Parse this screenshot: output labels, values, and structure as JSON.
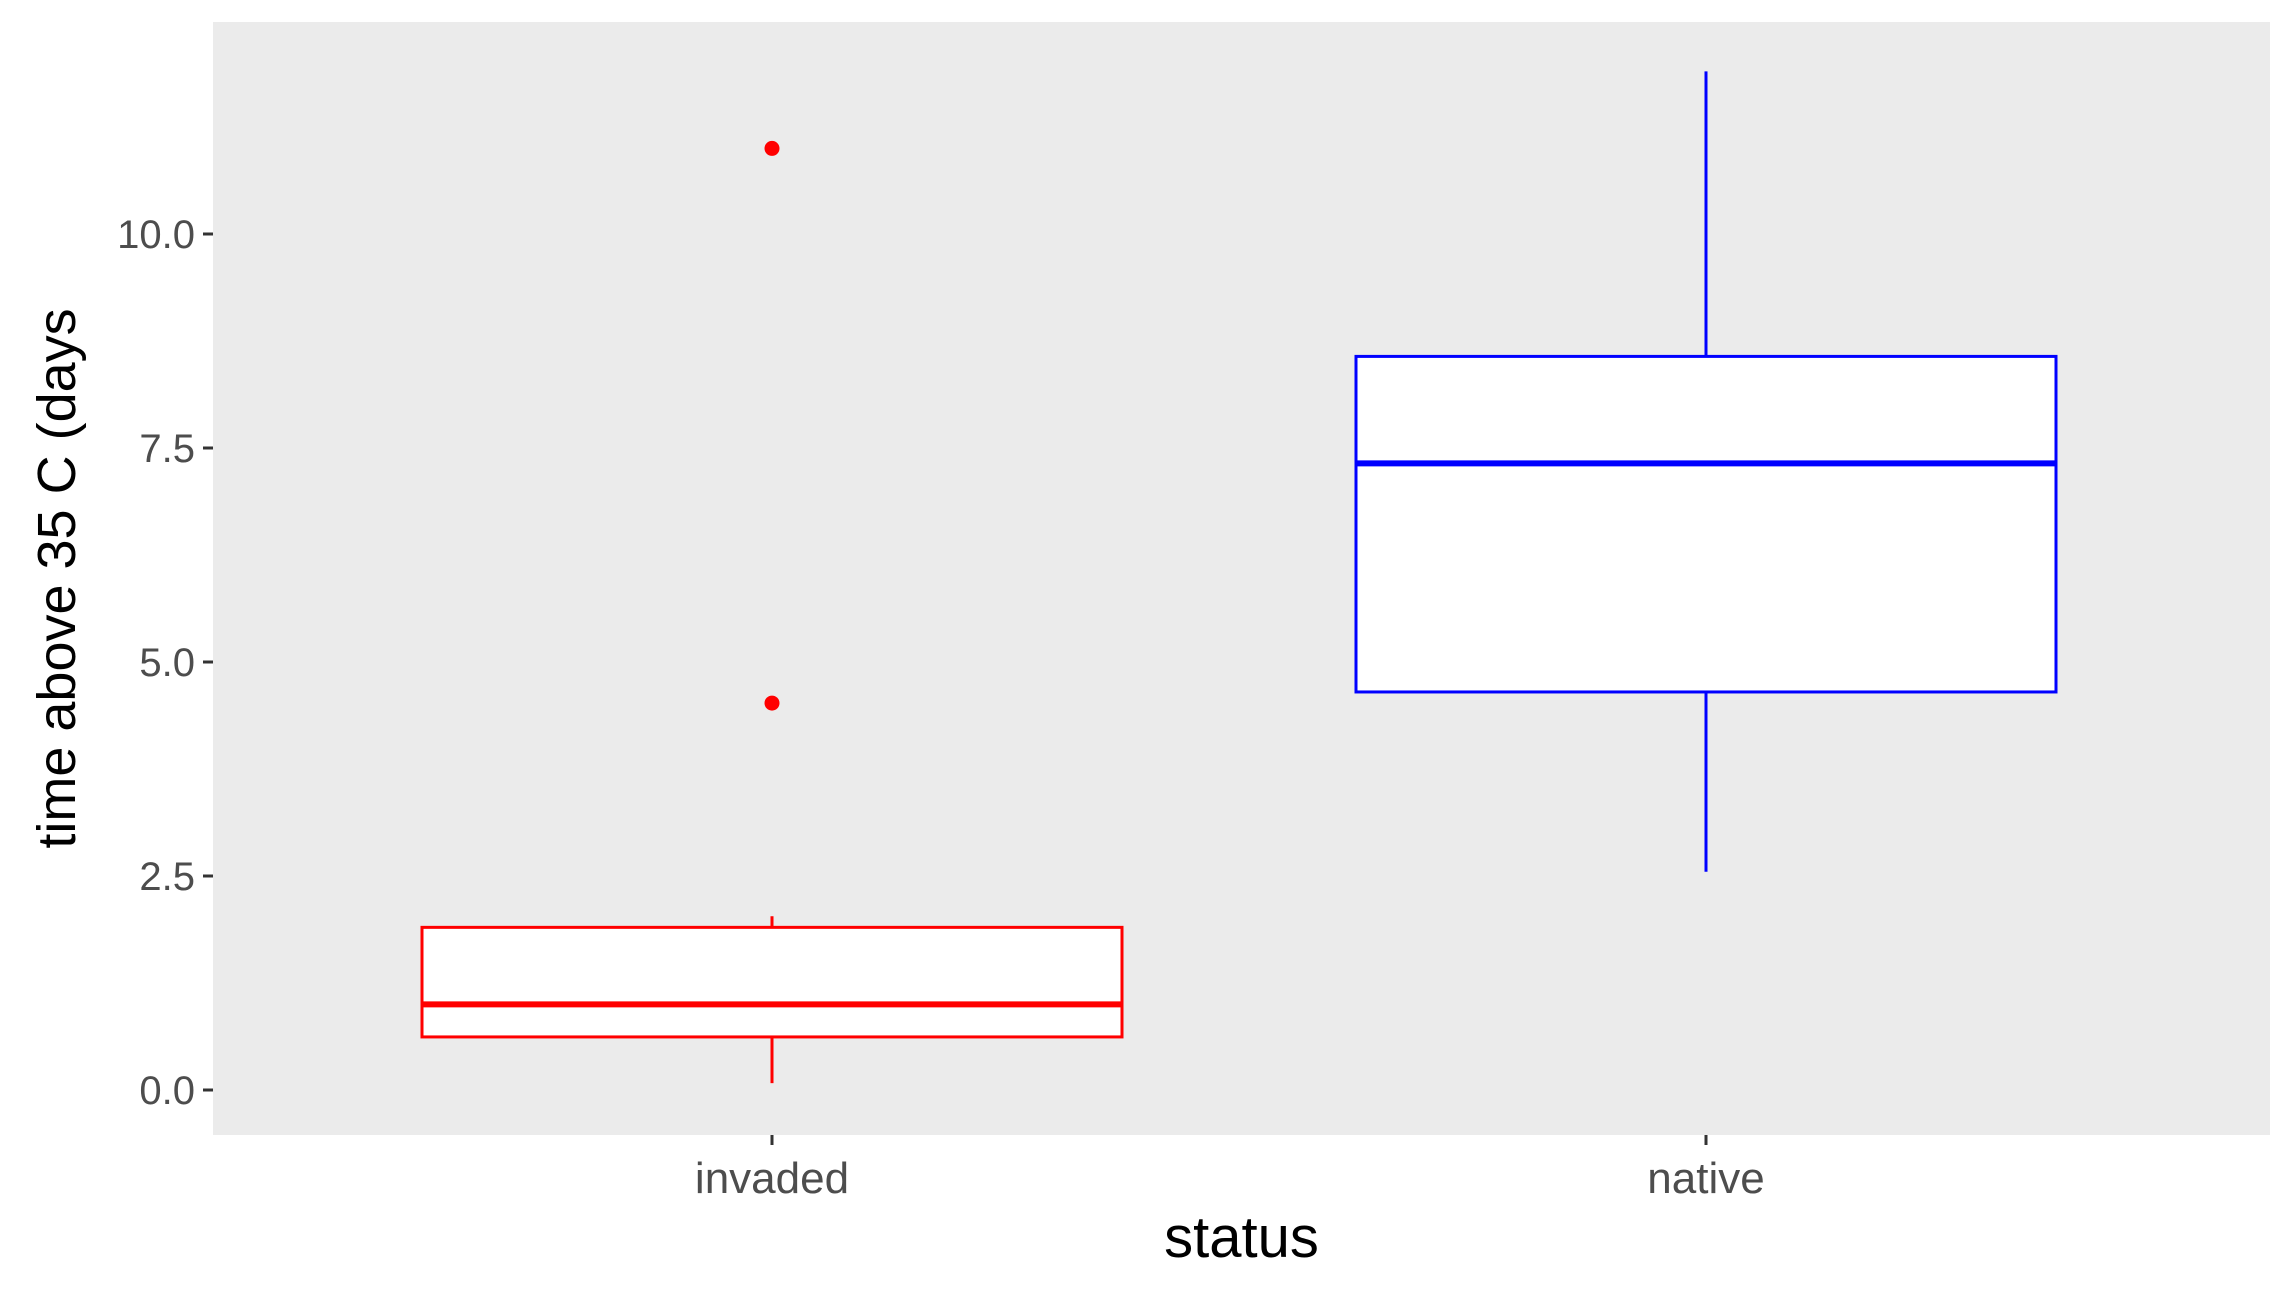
{
  "chart_data": {
    "type": "boxplot",
    "title": "",
    "xlabel": "status",
    "ylabel": "time above 35 C (days",
    "ylim": [
      -0.5,
      12.5
    ],
    "y_ticks": [
      0.0,
      2.5,
      5.0,
      7.5,
      10.0
    ],
    "y_tick_labels": [
      "0.0",
      "2.5",
      "5.0",
      "7.5",
      "10.0"
    ],
    "categories": [
      "invaded",
      "native"
    ],
    "grid": false,
    "legend": "none",
    "background_color": "#ebebeb",
    "series": [
      {
        "category": "invaded",
        "color": "#ff0000",
        "whisker_low": 0.08,
        "q1": 0.62,
        "median": 1.0,
        "q3": 1.9,
        "whisker_high": 2.03,
        "outliers": [
          4.52,
          11.0
        ]
      },
      {
        "category": "native",
        "color": "#0000ff",
        "whisker_low": 2.55,
        "q1": 4.65,
        "median": 7.32,
        "q3": 8.57,
        "whisker_high": 11.9,
        "outliers": []
      }
    ]
  }
}
